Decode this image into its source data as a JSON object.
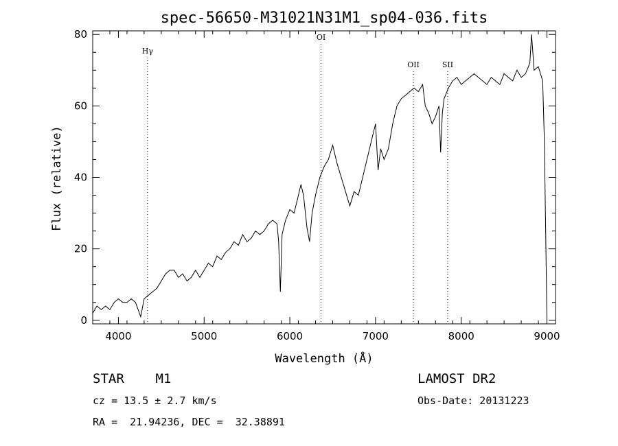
{
  "chart_data": {
    "type": "line",
    "title": "spec-56650-M31021N31M1_sp04-036.fits",
    "xlabel": "Wavelength (Å)",
    "ylabel": "Flux (relative)",
    "xlim": [
      3700,
      9100
    ],
    "ylim": [
      -1,
      81
    ],
    "x_ticks": [
      4000,
      5000,
      6000,
      7000,
      8000,
      9000
    ],
    "y_ticks": [
      0,
      20,
      40,
      60,
      80
    ],
    "x_tick_labels": [
      "4000",
      "5000",
      "6000",
      "7000",
      "8000",
      "9000"
    ],
    "y_tick_labels": [
      "0",
      "20",
      "40",
      "60",
      "80"
    ],
    "grid": false,
    "series": [
      {
        "x": [
          3700,
          3750,
          3800,
          3850,
          3900,
          3950,
          4000,
          4050,
          4100,
          4150,
          4200,
          4260,
          4300,
          4350,
          4400,
          4450,
          4500,
          4550,
          4600,
          4650,
          4700,
          4750,
          4800,
          4850,
          4900,
          4950,
          5000,
          5050,
          5100,
          5150,
          5200,
          5250,
          5300,
          5350,
          5400,
          5450,
          5500,
          5550,
          5600,
          5650,
          5700,
          5750,
          5800,
          5850,
          5870,
          5890,
          5910,
          5950,
          6000,
          6050,
          6100,
          6130,
          6160,
          6200,
          6230,
          6260,
          6300,
          6350,
          6400,
          6450,
          6500,
          6550,
          6600,
          6650,
          6700,
          6750,
          6800,
          6850,
          6900,
          6950,
          7000,
          7030,
          7060,
          7100,
          7150,
          7200,
          7250,
          7300,
          7350,
          7400,
          7450,
          7500,
          7550,
          7580,
          7620,
          7660,
          7700,
          7740,
          7760,
          7780,
          7800,
          7850,
          7900,
          7950,
          8000,
          8050,
          8100,
          8150,
          8200,
          8250,
          8300,
          8350,
          8400,
          8450,
          8500,
          8550,
          8600,
          8650,
          8700,
          8750,
          8800,
          8820,
          8850,
          8900,
          8950,
          8970,
          9000
        ],
        "y": [
          2,
          4,
          3,
          4,
          3,
          5,
          6,
          5,
          5,
          6,
          5,
          1,
          6,
          7,
          8,
          9,
          11,
          13,
          14,
          14,
          12,
          13,
          11,
          12,
          14,
          12,
          14,
          16,
          15,
          18,
          17,
          19,
          20,
          22,
          21,
          24,
          22,
          23,
          25,
          24,
          25,
          27,
          28,
          27,
          22,
          8,
          24,
          28,
          31,
          30,
          35,
          38,
          35,
          26,
          22,
          30,
          35,
          40,
          43,
          45,
          49,
          44,
          40,
          36,
          32,
          36,
          35,
          40,
          45,
          50,
          55,
          42,
          48,
          45,
          48,
          55,
          60,
          62,
          63,
          64,
          65,
          64,
          66,
          60,
          58,
          55,
          57,
          60,
          47,
          58,
          62,
          65,
          67,
          68,
          66,
          67,
          68,
          69,
          68,
          67,
          66,
          68,
          67,
          66,
          69,
          68,
          67,
          70,
          68,
          69,
          72,
          80,
          70,
          71,
          67,
          50,
          0
        ]
      }
    ],
    "annotations": [
      {
        "label": "Hγ",
        "x": 4340
      },
      {
        "label": "OI",
        "x": 6364
      },
      {
        "label": "OII",
        "x": 7442
      },
      {
        "label": "SII",
        "x": 7842
      }
    ]
  },
  "footer": {
    "object_class": "STAR    M1",
    "survey": "LAMOST DR2",
    "cz": "cz = 13.5 ± 2.7 km/s",
    "obs_date": "Obs-Date: 20131223",
    "radec": "RA =  21.94236, DEC =  32.38891"
  },
  "colors": {
    "background": "#ffffff",
    "line": "#000000"
  }
}
